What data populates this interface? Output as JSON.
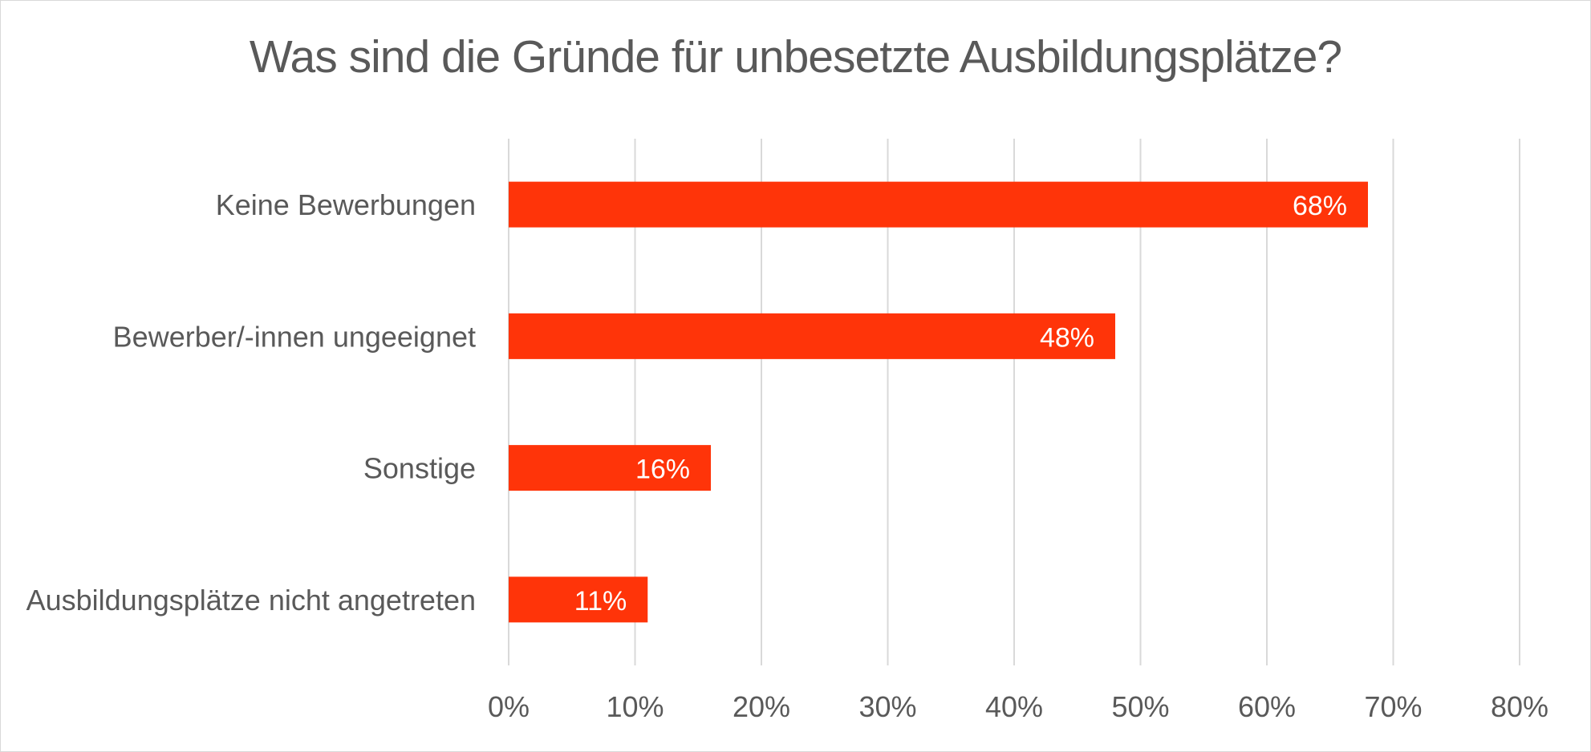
{
  "chart_data": {
    "type": "bar",
    "orientation": "horizontal",
    "title": "Was sind die Gründe für unbesetzte Ausbildungsplätze?",
    "categories": [
      "Keine Bewerbungen",
      "Bewerber/-innen ungeeignet",
      "Sonstige",
      "Ausbildungsplätze nicht angetreten"
    ],
    "values": [
      68,
      48,
      16,
      11
    ],
    "data_labels": [
      "68%",
      "48%",
      "16%",
      "11%"
    ],
    "xlim": [
      0,
      80
    ],
    "x_ticks": [
      0,
      10,
      20,
      30,
      40,
      50,
      60,
      70,
      80
    ],
    "x_tick_labels": [
      "0%",
      "10%",
      "20%",
      "30%",
      "40%",
      "50%",
      "60%",
      "70%",
      "80%"
    ],
    "grid": "vertical",
    "legend": "none",
    "bar_color": "#ff3409",
    "text_color": "#595959",
    "grid_color": "#d9d9d9"
  }
}
